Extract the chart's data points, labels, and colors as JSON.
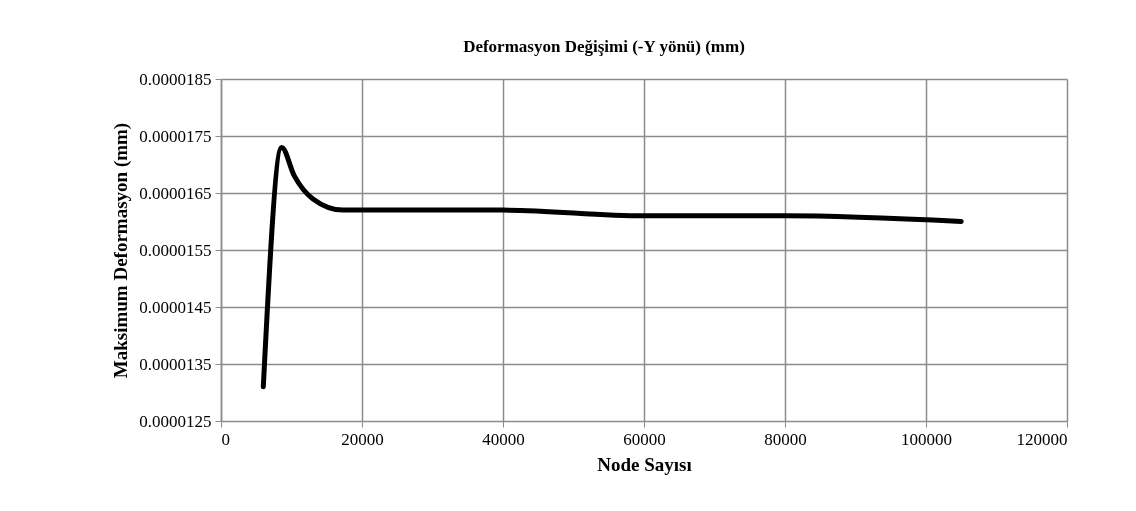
{
  "chart_data": {
    "type": "line",
    "title": "Deformasyon Değişimi (-Y yönü) (mm)",
    "xlabel": "Node Sayısı",
    "ylabel": "Maksimum  Deformasyon (mm)",
    "x": [
      6000,
      8600,
      10400,
      13000,
      17300,
      31400,
      40000,
      60000,
      80000,
      105000
    ],
    "series": [
      {
        "color": "#000000",
        "values": [
          1.31e-05,
          1.73e-05,
          1.68e-05,
          1.64e-05,
          1.62e-05,
          1.62e-05,
          1.62e-05,
          1.61e-05,
          1.61e-05,
          1.6e-05
        ]
      }
    ],
    "xlim": [
      0,
      120000
    ],
    "xticks": [
      0,
      20000,
      40000,
      60000,
      80000,
      100000,
      120000
    ],
    "ylim": [
      1.25e-05,
      1.85e-05
    ],
    "yticks": [
      {
        "value": 1.25e-05,
        "label": "0.0000125"
      },
      {
        "value": 1.35e-05,
        "label": "0.0000135"
      },
      {
        "value": 1.45e-05,
        "label": "0.0000145"
      },
      {
        "value": 1.55e-05,
        "label": "0.0000155"
      },
      {
        "value": 1.65e-05,
        "label": "0.0000165"
      },
      {
        "value": 1.75e-05,
        "label": "0.0000175"
      },
      {
        "value": 1.85e-05,
        "label": "0.0000185"
      }
    ],
    "grid": true
  }
}
